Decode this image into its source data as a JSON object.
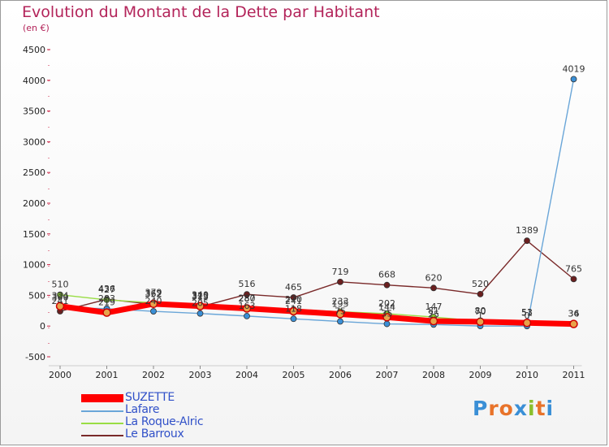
{
  "title": "Evolution du Montant de la Dette par Habitant",
  "unit_label": "(en €)",
  "logo": {
    "text": "Proxiti",
    "colors": [
      "#3a8fd6",
      "#e8732a",
      "#e8732a",
      "#3a8fd6",
      "#8abf2c",
      "#e8732a",
      "#3a8fd6"
    ]
  },
  "chart_data": {
    "type": "line",
    "title": "Evolution du Montant de la Dette par Habitant",
    "ylabel": "(en €)",
    "xlabel": "",
    "x": [
      "2000",
      "2001",
      "2002",
      "2003",
      "2004",
      "2005",
      "2006",
      "2007",
      "2008",
      "2009",
      "2010",
      "2011"
    ],
    "ylim": [
      -500,
      4500
    ],
    "yticks": [
      -500,
      0,
      500,
      1000,
      1500,
      2000,
      2500,
      3000,
      3500,
      4000,
      4500
    ],
    "grid": false,
    "legend_position": "bottom-left",
    "series": [
      {
        "name": "SUZETTE",
        "color": "#ff0000",
        "marker_color": "#e8a24a",
        "values": [
          324,
          219,
          362,
          325,
          287,
          241,
          195,
          144,
          81,
          70,
          53,
          34
        ],
        "labels": [
          "324",
          "219",
          "362",
          "325",
          "287",
          "241",
          "195",
          "144",
          "81",
          "70",
          "53",
          "34"
        ]
      },
      {
        "name": "Lafare",
        "color": "#6aa6d8",
        "marker_color": "#3a8fd6",
        "values": [
          300,
          283,
          240,
          205,
          163,
          118,
          75,
          35,
          25,
          1,
          0,
          4019
        ],
        "labels": [
          "300",
          "283",
          "240",
          "205",
          "163",
          "118",
          "75",
          "35",
          "25",
          "1",
          "0",
          "4019"
        ]
      },
      {
        "name": "La Roque-Alric",
        "color": "#99dd44",
        "marker_color": "#88cc33",
        "values": [
          510,
          427,
          379,
          340,
          280,
          270,
          233,
          202,
          147,
          80,
          51,
          36
        ],
        "labels": [
          "510",
          "427",
          "379",
          "340",
          "280",
          "270",
          "233",
          "202",
          "147",
          "80",
          "51",
          "36"
        ]
      },
      {
        "name": "Le Barroux",
        "color": "#7a2a2a",
        "marker_color": "#6b1f1f",
        "values": [
          241,
          436,
          352,
          313,
          516,
          465,
          719,
          668,
          620,
          520,
          1389,
          765
        ],
        "labels": [
          "241",
          "436",
          "352",
          "313",
          "516",
          "465",
          "719",
          "668",
          "620",
          "520",
          "1389",
          "765"
        ]
      }
    ]
  }
}
